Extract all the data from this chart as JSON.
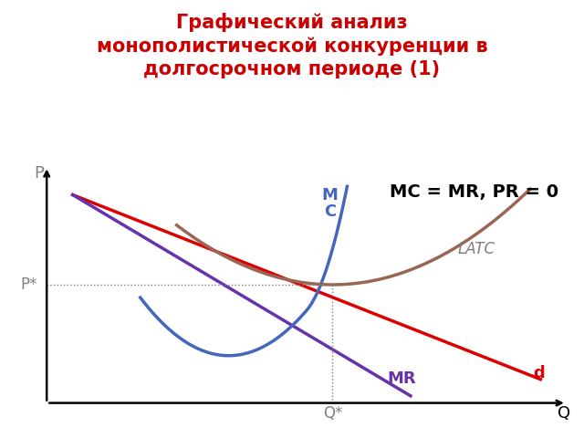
{
  "title_line1": "Графический анализ",
  "title_line2": "монополистической конкуренции в",
  "title_line3": "долгосрочном периоде (1)",
  "title_color": "#cc0000",
  "title_fontsize": 15,
  "subtitle": "MC = MR, PR = 0",
  "subtitle_fontsize": 14,
  "background_color": "#ffffff",
  "axis_label_P": "P",
  "axis_label_Q": "Q",
  "P_star_label": "P*",
  "Q_star_label": "Q*",
  "label_MC_line1": "M",
  "label_MC_line2": "C",
  "label_MR": "MR",
  "label_d": "d",
  "label_LATC": "LATC",
  "color_d": "#dd0000",
  "color_MR": "#6633aa",
  "color_MC": "#4466bb",
  "color_LATC": "#996655",
  "xmin": 0,
  "xmax": 10,
  "ymin": 0,
  "ymax": 10,
  "Q_star": 5.5,
  "P_star": 5.0
}
